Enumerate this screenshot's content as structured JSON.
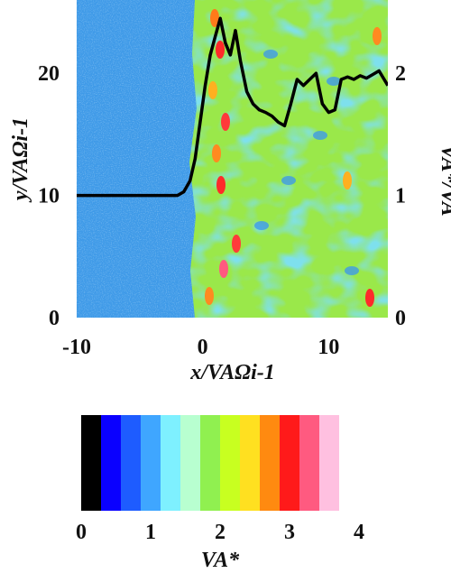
{
  "chart_data": [
    {
      "type": "heatmap",
      "xlabel": "x/VAΩi-1",
      "ylabel": "y/VAΩi-1",
      "y2label": "VA*/VA",
      "xlim": [
        -10,
        14.7
      ],
      "ylim": [
        0,
        26
      ],
      "y2lim": [
        0,
        2.6
      ],
      "x_ticks": [
        "-10",
        "0",
        "10"
      ],
      "y_ticks": [
        "0",
        "10",
        "20"
      ],
      "y2_ticks": [
        "0",
        "1",
        "2"
      ],
      "colormap": [
        "#000000",
        "#0a00ff",
        "#1e5cff",
        "#3fa6ff",
        "#7ef0ff",
        "#b8ffd0",
        "#90f050",
        "#c8ff20",
        "#ffe020",
        "#ff8a10",
        "#ff1a1a",
        "#ff5a80",
        "#ffc0e0",
        "#ffffff"
      ],
      "series": [
        {
          "axis": "y2",
          "color": "#000000",
          "x": [
            -10,
            -8,
            -6,
            -4,
            -2,
            -1.5,
            -1,
            -0.6,
            -0.2,
            0.2,
            0.6,
            1,
            1.4,
            1.8,
            2.2,
            2.6,
            3,
            3.5,
            4,
            4.5,
            5,
            5.5,
            6,
            6.5,
            7,
            7.5,
            8,
            8.5,
            9,
            9.5,
            10,
            10.5,
            11,
            11.5,
            12,
            12.5,
            13,
            13.5,
            14,
            14.7
          ],
          "values": [
            1.0,
            1.0,
            1.0,
            1.0,
            1.0,
            1.03,
            1.12,
            1.3,
            1.6,
            1.9,
            2.15,
            2.3,
            2.45,
            2.25,
            2.15,
            2.35,
            2.1,
            1.85,
            1.75,
            1.7,
            1.68,
            1.65,
            1.6,
            1.57,
            1.75,
            1.95,
            1.9,
            1.95,
            2.0,
            1.75,
            1.68,
            1.7,
            1.95,
            1.97,
            1.95,
            1.98,
            1.96,
            1.99,
            2.02,
            1.9
          ]
        }
      ]
    },
    {
      "type": "colorbar",
      "xlabel": "VA*",
      "range": [
        0,
        4
      ],
      "ticks": [
        "0",
        "1",
        "2",
        "3",
        "4"
      ]
    }
  ]
}
